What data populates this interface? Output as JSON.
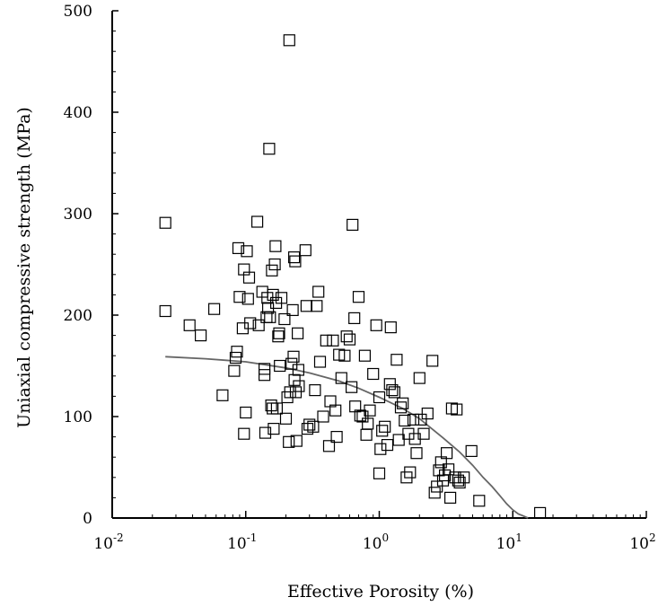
{
  "chart_data": {
    "type": "scatter",
    "title": "",
    "xlabel": "Effective Porosity (%)",
    "ylabel": "Uniaxial compressive strength (MPa)",
    "x_scale": "log",
    "xlim": [
      0.01,
      100
    ],
    "ylim": [
      0,
      500
    ],
    "x_ticks": [
      {
        "value": 0.01,
        "base": "10",
        "exp": "-2"
      },
      {
        "value": 0.1,
        "base": "10",
        "exp": "-1"
      },
      {
        "value": 1,
        "base": "10",
        "exp": "0"
      },
      {
        "value": 10,
        "base": "10",
        "exp": "1"
      },
      {
        "value": 100,
        "base": "10",
        "exp": "2"
      }
    ],
    "y_ticks": [
      "0",
      "100",
      "200",
      "300",
      "400",
      "500"
    ],
    "grid": false,
    "legend": "none",
    "series": [
      {
        "marker": "open-square",
        "color": "#000000",
        "points": [
          [
            0.025,
            291
          ],
          [
            0.025,
            204
          ],
          [
            0.038,
            190
          ],
          [
            0.046,
            180
          ],
          [
            0.058,
            206
          ],
          [
            0.067,
            121
          ],
          [
            0.082,
            145
          ],
          [
            0.084,
            158
          ],
          [
            0.086,
            164
          ],
          [
            0.088,
            266
          ],
          [
            0.09,
            218
          ],
          [
            0.095,
            187
          ],
          [
            0.097,
            245
          ],
          [
            0.097,
            83
          ],
          [
            0.1,
            104
          ],
          [
            0.102,
            263
          ],
          [
            0.104,
            216
          ],
          [
            0.106,
            237
          ],
          [
            0.108,
            192
          ],
          [
            0.122,
            292
          ],
          [
            0.125,
            190
          ],
          [
            0.133,
            223
          ],
          [
            0.138,
            147
          ],
          [
            0.138,
            141
          ],
          [
            0.14,
            84
          ],
          [
            0.143,
            198
          ],
          [
            0.145,
            217
          ],
          [
            0.147,
            207
          ],
          [
            0.15,
            364
          ],
          [
            0.152,
            198
          ],
          [
            0.155,
            111
          ],
          [
            0.157,
            244
          ],
          [
            0.159,
            108
          ],
          [
            0.16,
            220
          ],
          [
            0.162,
            88
          ],
          [
            0.165,
            250
          ],
          [
            0.167,
            268
          ],
          [
            0.169,
            212
          ],
          [
            0.171,
            108
          ],
          [
            0.175,
            179
          ],
          [
            0.178,
            182
          ],
          [
            0.18,
            150
          ],
          [
            0.185,
            217
          ],
          [
            0.195,
            196
          ],
          [
            0.2,
            98
          ],
          [
            0.205,
            119
          ],
          [
            0.21,
            75
          ],
          [
            0.212,
            471
          ],
          [
            0.215,
            124
          ],
          [
            0.22,
            152
          ],
          [
            0.225,
            205
          ],
          [
            0.228,
            159
          ],
          [
            0.23,
            257
          ],
          [
            0.232,
            136
          ],
          [
            0.235,
            253
          ],
          [
            0.237,
            124
          ],
          [
            0.24,
            76
          ],
          [
            0.245,
            182
          ],
          [
            0.248,
            146
          ],
          [
            0.25,
            130
          ],
          [
            0.28,
            264
          ],
          [
            0.285,
            209
          ],
          [
            0.29,
            88
          ],
          [
            0.3,
            92
          ],
          [
            0.32,
            90
          ],
          [
            0.33,
            126
          ],
          [
            0.34,
            209
          ],
          [
            0.35,
            223
          ],
          [
            0.36,
            154
          ],
          [
            0.38,
            100
          ],
          [
            0.4,
            175
          ],
          [
            0.42,
            71
          ],
          [
            0.43,
            115
          ],
          [
            0.45,
            175
          ],
          [
            0.47,
            106
          ],
          [
            0.48,
            80
          ],
          [
            0.5,
            161
          ],
          [
            0.52,
            138
          ],
          [
            0.55,
            160
          ],
          [
            0.57,
            179
          ],
          [
            0.6,
            176
          ],
          [
            0.62,
            129
          ],
          [
            0.63,
            289
          ],
          [
            0.65,
            197
          ],
          [
            0.66,
            110
          ],
          [
            0.7,
            218
          ],
          [
            0.72,
            101
          ],
          [
            0.75,
            100
          ],
          [
            0.78,
            160
          ],
          [
            0.8,
            82
          ],
          [
            0.82,
            93
          ],
          [
            0.85,
            106
          ],
          [
            0.9,
            142
          ],
          [
            0.95,
            190
          ],
          [
            1.0,
            119
          ],
          [
            1.0,
            44
          ],
          [
            1.02,
            68
          ],
          [
            1.05,
            86
          ],
          [
            1.1,
            90
          ],
          [
            1.15,
            72
          ],
          [
            1.2,
            132
          ],
          [
            1.22,
            188
          ],
          [
            1.25,
            126
          ],
          [
            1.3,
            124
          ],
          [
            1.35,
            156
          ],
          [
            1.4,
            77
          ],
          [
            1.45,
            109
          ],
          [
            1.5,
            113
          ],
          [
            1.55,
            96
          ],
          [
            1.6,
            40
          ],
          [
            1.65,
            83
          ],
          [
            1.7,
            45
          ],
          [
            1.8,
            97
          ],
          [
            1.85,
            78
          ],
          [
            1.9,
            64
          ],
          [
            2.0,
            138
          ],
          [
            2.05,
            97
          ],
          [
            2.15,
            83
          ],
          [
            2.3,
            103
          ],
          [
            2.5,
            155
          ],
          [
            2.6,
            25
          ],
          [
            2.7,
            31
          ],
          [
            2.8,
            47
          ],
          [
            2.9,
            55
          ],
          [
            3.0,
            37
          ],
          [
            3.1,
            42
          ],
          [
            3.2,
            64
          ],
          [
            3.3,
            48
          ],
          [
            3.4,
            20
          ],
          [
            3.5,
            108
          ],
          [
            3.7,
            40
          ],
          [
            3.8,
            107
          ],
          [
            3.9,
            37
          ],
          [
            4.0,
            35
          ],
          [
            4.3,
            40
          ],
          [
            4.9,
            66
          ],
          [
            5.6,
            17
          ],
          [
            16.0,
            5
          ]
        ]
      },
      {
        "marker": "line",
        "color": "#666666",
        "curve": [
          [
            0.025,
            159
          ],
          [
            0.05,
            157
          ],
          [
            0.1,
            154
          ],
          [
            0.2,
            148
          ],
          [
            0.3,
            143
          ],
          [
            0.5,
            135
          ],
          [
            0.7,
            128
          ],
          [
            1.0,
            119
          ],
          [
            1.5,
            108
          ],
          [
            2.0,
            98
          ],
          [
            3.0,
            79
          ],
          [
            4.0,
            65
          ],
          [
            5.0,
            52
          ],
          [
            6.0,
            40
          ],
          [
            7.0,
            31
          ],
          [
            8.0,
            22
          ],
          [
            9.0,
            14
          ],
          [
            10.0,
            8
          ],
          [
            11.0,
            4
          ],
          [
            12.0,
            2
          ],
          [
            13.0,
            0
          ]
        ]
      }
    ]
  }
}
